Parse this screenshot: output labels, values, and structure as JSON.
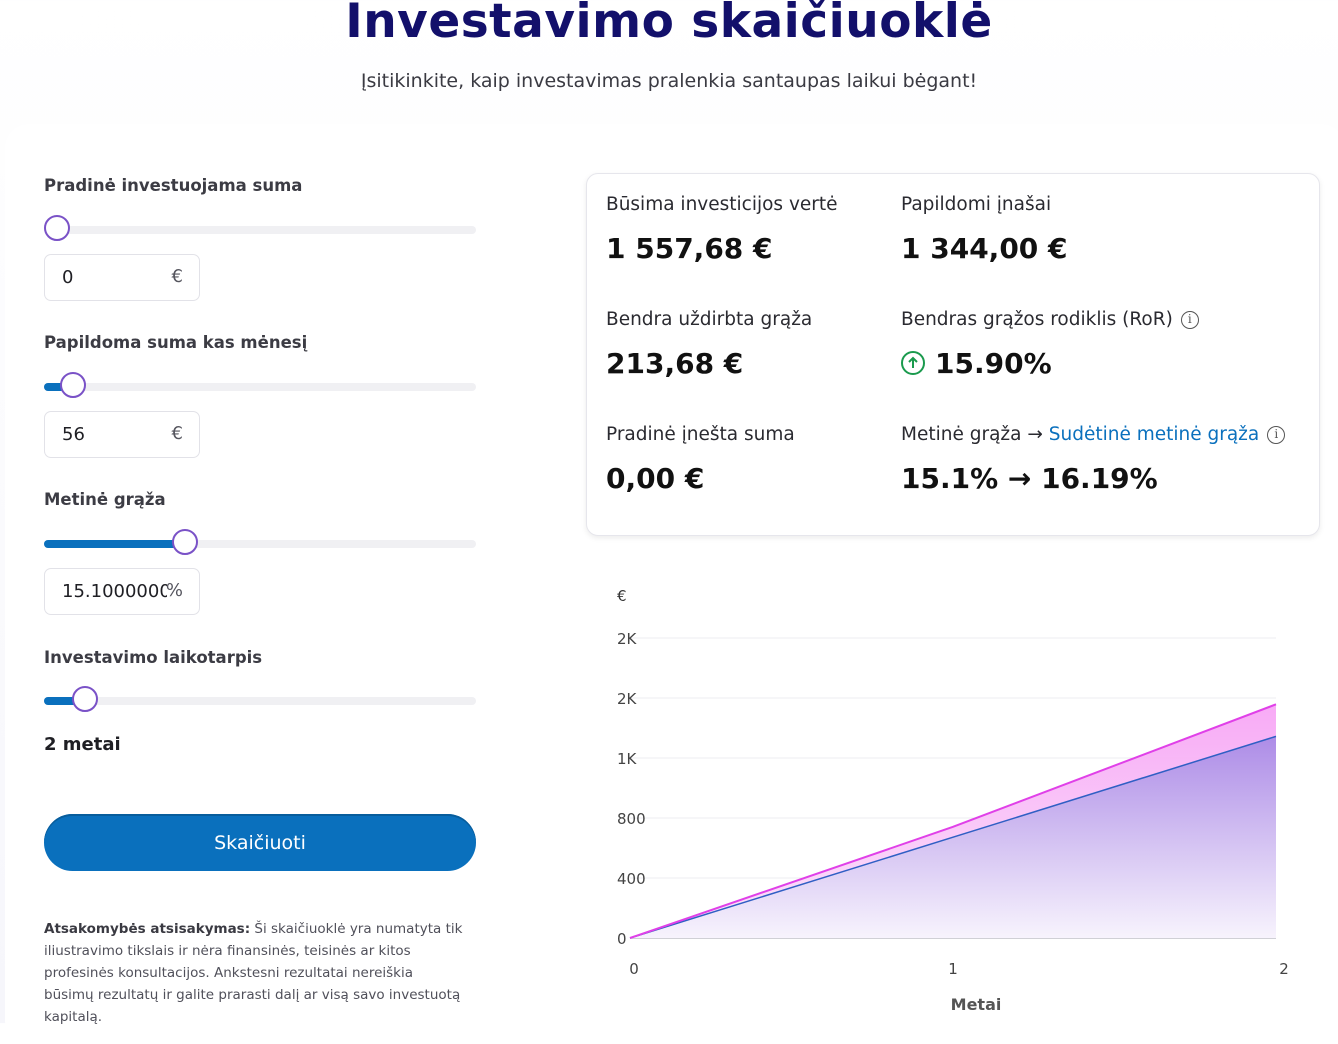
{
  "header": {
    "title": "Investavimo skaičiuoklė",
    "subtitle": "Įsitikinkite, kaip investavimas pralenkia santaupas laikui bėgant!"
  },
  "form": {
    "initial": {
      "label": "Pradinė investuojama suma",
      "value": "0",
      "unit": "€",
      "slider_fraction": 0.0
    },
    "monthly": {
      "label": "Papildoma suma kas mėnesį",
      "value": "56",
      "unit": "€",
      "slider_fraction": 0.04
    },
    "rate": {
      "label": "Metinė grąža",
      "value": "15.1000000",
      "unit": "%",
      "slider_fraction": 0.315
    },
    "period": {
      "label": "Investavimo laikotarpis",
      "value_text": "2 metai",
      "slider_fraction": 0.07
    },
    "button_label": "Skaičiuoti",
    "disclaimer_bold": "Atsakomybės atsisakymas:",
    "disclaimer_text": " Ši skaičiuoklė yra numatyta tik iliustravimo tikslais ir nėra finansinės, teisinės ar kitos profesinės konsultacijos. Ankstesni rezultatai nereiškia būsimų rezultatų ir galite prarasti dalį ar visą savo investuotą kapitalą."
  },
  "results": {
    "future_value": {
      "label": "Būsima investicijos vertė",
      "value": "1 557,68 €"
    },
    "contributions": {
      "label": "Papildomi įnašai",
      "value": "1 344,00 €"
    },
    "earned": {
      "label": "Bendra uždirbta grąža",
      "value": "213,68 €"
    },
    "ror": {
      "label": "Bendras grąžos rodiklis (RoR)",
      "value": "15.90%"
    },
    "initial": {
      "label": "Pradinė įnešta suma",
      "value": "0,00 €"
    },
    "annual": {
      "label_plain": "Metinė grąža →",
      "label_link": "Sudėtinė metinė grąža",
      "value": "15.1% → 16.19%"
    },
    "colors": {
      "up": "#1a9a4d",
      "link": "#0a70bd"
    }
  },
  "chart_data": {
    "type": "area",
    "y_unit_label": "€",
    "xlabel": "Metai",
    "x": [
      0,
      1,
      2
    ],
    "x_ticks": [
      "0",
      "1",
      "2"
    ],
    "y_ticks": [
      {
        "value": 0,
        "label": "0"
      },
      {
        "value": 400,
        "label": "400"
      },
      {
        "value": 800,
        "label": "800"
      },
      {
        "value": 1200,
        "label": "1K"
      },
      {
        "value": 1600,
        "label": "2K"
      },
      {
        "value": 2000,
        "label": "2K"
      }
    ],
    "ylim": [
      0,
      2000
    ],
    "series": [
      {
        "values": [
          0,
          741,
          1557.68
        ],
        "color": "#e040e8"
      },
      {
        "values": [
          0,
          672,
          1344
        ],
        "color": "#2f5fc4"
      }
    ],
    "grid": true
  }
}
